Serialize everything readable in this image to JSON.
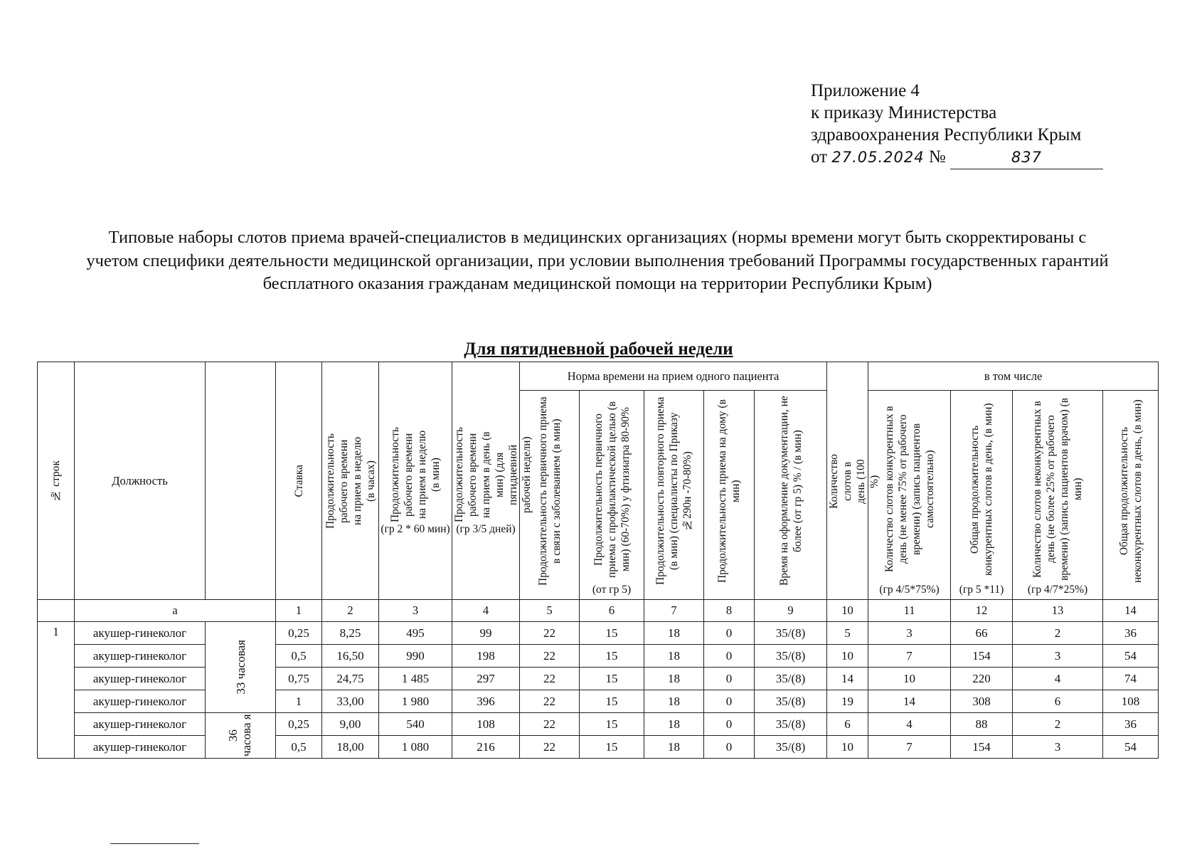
{
  "annex": {
    "line1": "Приложение 4",
    "line2": "к приказу Министерства",
    "line3": "здравоохранения Республики Крым",
    "from_label": "от",
    "date": "27.05.2024",
    "number_label": "№",
    "number": "837"
  },
  "title": "Типовые наборы слотов приема врачей-специалистов в медицинских организациях (нормы времени могут быть скорректированы с учетом специфики деятельности медицинской организации, при условии выполнения требований Программы государственных гарантий бесплатного оказания гражданам медицинской помощи на территории Республики Крым)",
  "subtitle": "Для пятидневной рабочей недели",
  "table": {
    "group_norm": "Норма времени на прием одного пациента",
    "group_incl": "в том числе",
    "headers": {
      "row_no": "№ строк",
      "position": "Должность",
      "rate": "Ставка",
      "c2": "Продолжительность рабочего времени на прием в неделю (в часах)",
      "c3": "Продолжительность рабочего времени на прием в неделю (в мин)",
      "c3_cap": "(гр 2 * 60 мин)",
      "c4": "Продолжительность рабочего времени на прием в день (в мин) (для пятидневной рабочей недели)",
      "c4_cap": "(гр 3/5 дней)",
      "c5": "Продолжительность первичного приема в связи с заболеванием (в мин)",
      "c6": "Продолжительность первичного приема с профилактической целью (в мин) (60-70%) у фтизиатра 80-90%",
      "c6_cap": "(от гр 5)",
      "c7": "Продолжительность повторного приема (в мин) (специалисты по Приказу №290н -70-80%)",
      "c8": "Продолжительность приема на дому (в мин)",
      "c9": "Время на оформление документации, не более (от гр 5) % / (в мин)",
      "c10": "Количество слотов в день (100 %)",
      "c11": "Количество слотов конкурентных в день (не менее 75% от рабочего времени) (запись пациентов самостоятельно)",
      "c11_cap": "(гр 4/5*75%)",
      "c12": "Общая продолжительность конкурентных слотов в день, (в мин)",
      "c12_cap": "(гр 5 *11)",
      "c13": "Количество слотов неконкурентных в день (не более 25% от рабочего времени) (запись пациентов врачом) (в мин)",
      "c13_cap": "(гр 4/7*25%)",
      "c14": "Общая продолжительность неконкурентных слотов в день, (в мин)"
    },
    "numbers": [
      "а",
      "1",
      "2",
      "3",
      "4",
      "5",
      "6",
      "7",
      "8",
      "9",
      "10",
      "11",
      "12",
      "13",
      "14"
    ],
    "row_no_value": "1",
    "hours_33": "33 часовая",
    "hours_36": "36 часова я",
    "rows": [
      [
        "акушер-гинеколог",
        "0,25",
        "8,25",
        "495",
        "99",
        "22",
        "15",
        "18",
        "0",
        "35/(8)",
        "5",
        "3",
        "66",
        "2",
        "36"
      ],
      [
        "акушер-гинеколог",
        "0,5",
        "16,50",
        "990",
        "198",
        "22",
        "15",
        "18",
        "0",
        "35/(8)",
        "10",
        "7",
        "154",
        "3",
        "54"
      ],
      [
        "акушер-гинеколог",
        "0,75",
        "24,75",
        "1 485",
        "297",
        "22",
        "15",
        "18",
        "0",
        "35/(8)",
        "14",
        "10",
        "220",
        "4",
        "74"
      ],
      [
        "акушер-гинеколог",
        "1",
        "33,00",
        "1 980",
        "396",
        "22",
        "15",
        "18",
        "0",
        "35/(8)",
        "19",
        "14",
        "308",
        "6",
        "108"
      ],
      [
        "акушер-гинеколог",
        "0,25",
        "9,00",
        "540",
        "108",
        "22",
        "15",
        "18",
        "0",
        "35/(8)",
        "6",
        "4",
        "88",
        "2",
        "36"
      ],
      [
        "акушер-гинеколог",
        "0,5",
        "18,00",
        "1 080",
        "216",
        "22",
        "15",
        "18",
        "0",
        "35/(8)",
        "10",
        "7",
        "154",
        "3",
        "54"
      ]
    ]
  }
}
